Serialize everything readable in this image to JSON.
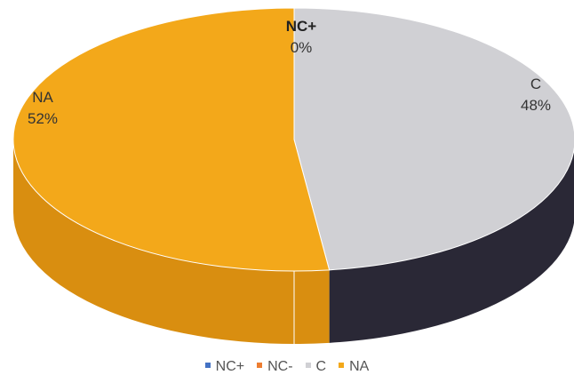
{
  "chart_data": {
    "type": "pie",
    "style": "3d",
    "title": "",
    "slices": [
      {
        "label": "NC+",
        "value": 0,
        "percent_label": "0%",
        "color": "#4472c4",
        "side_color": "#2f4f88"
      },
      {
        "label": "NC-",
        "value": 0,
        "percent_label": "",
        "color": "#ed7d31",
        "side_color": "#b55d22"
      },
      {
        "label": "C",
        "value": 48,
        "percent_label": "48%",
        "color": "#d0d0d4",
        "side_color": "#2a2836"
      },
      {
        "label": "NA",
        "value": 52,
        "percent_label": "52%",
        "color": "#f3a81a",
        "side_color": "#d98e10"
      }
    ],
    "legend": {
      "placement": "bottom",
      "entries": [
        "NC+",
        "NC-",
        "C",
        "NA"
      ]
    }
  }
}
